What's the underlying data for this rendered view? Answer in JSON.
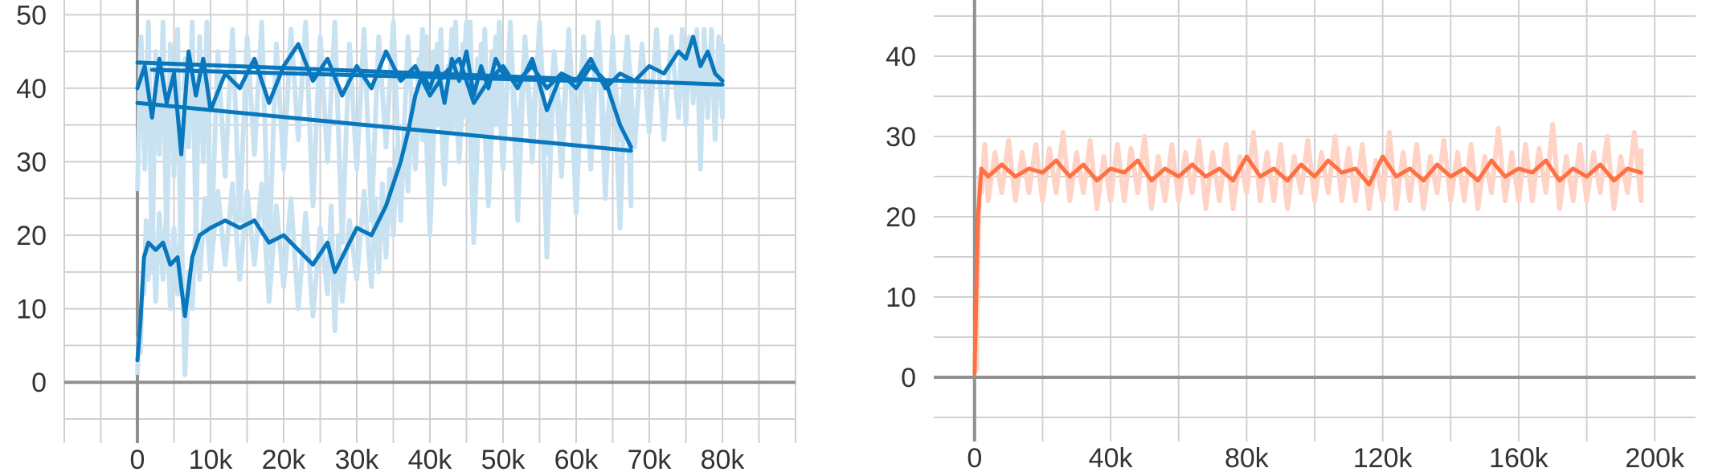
{
  "colors": {
    "left_line": "#0877BD",
    "left_raw": "#C9E2F1",
    "right_line": "#FF7043",
    "right_raw": "#FFD3C5",
    "grid": "#D0D0D0",
    "axis": "#909090"
  },
  "chart_data": [
    {
      "type": "line",
      "title": "",
      "xlabel": "",
      "ylabel": "",
      "xlim": [
        -10000,
        90000
      ],
      "ylim": [
        -5,
        52
      ],
      "x_ticks": [
        0,
        10000,
        20000,
        30000,
        40000,
        50000,
        60000,
        70000,
        80000
      ],
      "x_tick_labels": [
        "0",
        "10k",
        "20k",
        "30k",
        "40k",
        "50k",
        "60k",
        "70k",
        "80k"
      ],
      "y_ticks": [
        0,
        10,
        20,
        30,
        40,
        50
      ],
      "y_tick_labels": [
        "0",
        "10",
        "20",
        "30",
        "40",
        "50"
      ],
      "grid": true,
      "series": [
        {
          "x": [
            0,
            400,
            900,
            1500,
            2500,
            3500,
            4500,
            5500,
            6500,
            7500,
            8500,
            10000,
            12000,
            14000,
            16000,
            18000,
            20000,
            22000,
            24000,
            26000,
            27000,
            28000,
            30000,
            32000,
            33000,
            34000,
            35000,
            36000,
            37000,
            38000,
            39000,
            40000,
            41000,
            42000,
            43000,
            44000,
            45000,
            46000,
            47000,
            48000,
            49000,
            50000,
            52000,
            54000,
            56000,
            58000,
            60000,
            62000,
            64000,
            66000,
            68000,
            70000,
            72000,
            74000,
            75000,
            76000,
            77000,
            78000,
            79000,
            80000
          ],
          "y": [
            3,
            8,
            17,
            19,
            18,
            19,
            16,
            17,
            9,
            17,
            20,
            21,
            22,
            21,
            22,
            19,
            20,
            18,
            16,
            19,
            15,
            17,
            21,
            20,
            22,
            24,
            27,
            30,
            34,
            39,
            42,
            40,
            43,
            38,
            44,
            41,
            45,
            39,
            43,
            40,
            44,
            42,
            41,
            43,
            40,
            42,
            41,
            44,
            40,
            42,
            41,
            43,
            42,
            45,
            44,
            47,
            43,
            45,
            42,
            41
          ],
          "raw_low": [
            1,
            4,
            12,
            14,
            11,
            14,
            10,
            12,
            1,
            10,
            14,
            15,
            16,
            14,
            16,
            11,
            13,
            10,
            9,
            12,
            7,
            11,
            14,
            13,
            15,
            17,
            20,
            22,
            26,
            31,
            33,
            31,
            35,
            30,
            34,
            32,
            36,
            30,
            34,
            31,
            35,
            33,
            32,
            34,
            31,
            33,
            32,
            35,
            31,
            33,
            32,
            34,
            33,
            36,
            35,
            38,
            29,
            36,
            33,
            36
          ],
          "raw_high": [
            6,
            13,
            22,
            24,
            23,
            24,
            21,
            22,
            15,
            22,
            25,
            26,
            27,
            26,
            27,
            24,
            25,
            23,
            21,
            24,
            20,
            22,
            26,
            25,
            27,
            29,
            32,
            35,
            39,
            44,
            47,
            45,
            48,
            43,
            49,
            46,
            49,
            44,
            48,
            45,
            49,
            47,
            46,
            48,
            45,
            47,
            46,
            49,
            45,
            47,
            46,
            48,
            47,
            48,
            47,
            48,
            48,
            48,
            47,
            46
          ]
        },
        {
          "x": [
            0,
            1000,
            2000,
            3000,
            4000,
            5000,
            6000,
            7000,
            8000,
            9000,
            10000,
            12000,
            14000,
            16000,
            18000,
            20000,
            22000,
            24000,
            26000,
            28000,
            30000,
            32000,
            34000,
            36000,
            38000,
            40000,
            42000,
            44000,
            46000,
            48000,
            50000,
            52000,
            54000,
            56000,
            58000,
            60000,
            62000,
            64000,
            66000,
            67500
          ],
          "y": [
            40,
            43,
            36,
            44,
            38,
            42,
            31,
            45,
            39,
            44,
            37,
            42,
            40,
            44,
            38,
            43,
            46,
            41,
            44,
            39,
            43,
            40,
            45,
            41,
            43,
            39,
            42,
            44,
            38,
            41,
            43,
            40,
            44,
            37,
            42,
            40,
            43,
            41,
            35,
            32
          ],
          "raw_low": [
            26,
            29,
            15,
            31,
            18,
            28,
            12,
            32,
            20,
            30,
            16,
            28,
            22,
            31,
            17,
            29,
            33,
            24,
            30,
            19,
            29,
            22,
            32,
            23,
            29,
            20,
            27,
            30,
            19,
            24,
            29,
            22,
            30,
            17,
            28,
            23,
            29,
            25,
            21,
            24
          ],
          "raw_high": [
            47,
            49,
            45,
            49,
            46,
            48,
            44,
            49,
            47,
            49,
            45,
            48,
            47,
            49,
            46,
            48,
            49,
            47,
            49,
            46,
            48,
            47,
            49,
            47,
            48,
            46,
            48,
            49,
            46,
            47,
            49,
            47,
            49,
            45,
            48,
            47,
            48,
            47,
            44,
            42
          ]
        },
        {
          "x": [
            0,
            67500
          ],
          "y": [
            38,
            31.5
          ]
        },
        {
          "x": [
            0,
            80000
          ],
          "y": [
            43.5,
            40.5
          ]
        },
        {
          "x": [
            2000,
            60000
          ],
          "y": [
            42.5,
            41
          ]
        }
      ]
    },
    {
      "type": "line",
      "title": "",
      "xlabel": "",
      "ylabel": "",
      "xlim": [
        -12000,
        212000
      ],
      "ylim": [
        -5,
        47
      ],
      "x_ticks": [
        0,
        40000,
        80000,
        120000,
        160000,
        200000
      ],
      "x_tick_labels": [
        "0",
        "40k",
        "80k",
        "120k",
        "160k",
        "200k"
      ],
      "y_ticks": [
        0,
        10,
        20,
        30,
        40
      ],
      "y_tick_labels": [
        "0",
        "10",
        "20",
        "30",
        "40"
      ],
      "grid": true,
      "series": [
        {
          "x": [
            0,
            1000,
            2000,
            4000,
            8000,
            12000,
            16000,
            20000,
            24000,
            28000,
            32000,
            36000,
            40000,
            44000,
            48000,
            52000,
            56000,
            60000,
            64000,
            68000,
            72000,
            76000,
            80000,
            84000,
            88000,
            92000,
            96000,
            100000,
            104000,
            108000,
            112000,
            116000,
            120000,
            124000,
            128000,
            132000,
            136000,
            140000,
            144000,
            148000,
            152000,
            156000,
            160000,
            164000,
            168000,
            172000,
            176000,
            180000,
            184000,
            188000,
            192000,
            196000
          ],
          "y": [
            0.5,
            20,
            26,
            25,
            26.5,
            25,
            26,
            25.5,
            27,
            25,
            26.5,
            24.5,
            26,
            25.5,
            27,
            24.5,
            26,
            25,
            26.5,
            25,
            26,
            24.5,
            27.5,
            25,
            26,
            24.5,
            26.5,
            25,
            27,
            25.5,
            26,
            24,
            27.5,
            25,
            26,
            24.5,
            26.5,
            25,
            26,
            24.5,
            27,
            25,
            26,
            25.5,
            27,
            24.5,
            26,
            25,
            26.5,
            24.5,
            26,
            25.5
          ],
          "raw_low": [
            0.5,
            15,
            23,
            22,
            23,
            22,
            23,
            22,
            23,
            22,
            23,
            21,
            22,
            22,
            23,
            21,
            22,
            22,
            23,
            21,
            22,
            21,
            23,
            22,
            22,
            21,
            23,
            22,
            23,
            22,
            22,
            21,
            22,
            21,
            22,
            21,
            23,
            22,
            22,
            21,
            23,
            22,
            22,
            22,
            23,
            21,
            22,
            22,
            23,
            21,
            23,
            22
          ],
          "raw_high": [
            1,
            25,
            29,
            28,
            29.5,
            28,
            29,
            28.5,
            30.5,
            28,
            29.5,
            27.5,
            29,
            28.5,
            30,
            27.5,
            29,
            28,
            29.5,
            28,
            29,
            27.5,
            30.5,
            28,
            29,
            27.5,
            29.5,
            28,
            30,
            28.5,
            29,
            27,
            30.5,
            28,
            29,
            27.5,
            29.5,
            28,
            29,
            27.5,
            31,
            28,
            29,
            28.5,
            31.5,
            27.5,
            29,
            28,
            30,
            27.5,
            30.5,
            28.5
          ]
        }
      ]
    }
  ]
}
